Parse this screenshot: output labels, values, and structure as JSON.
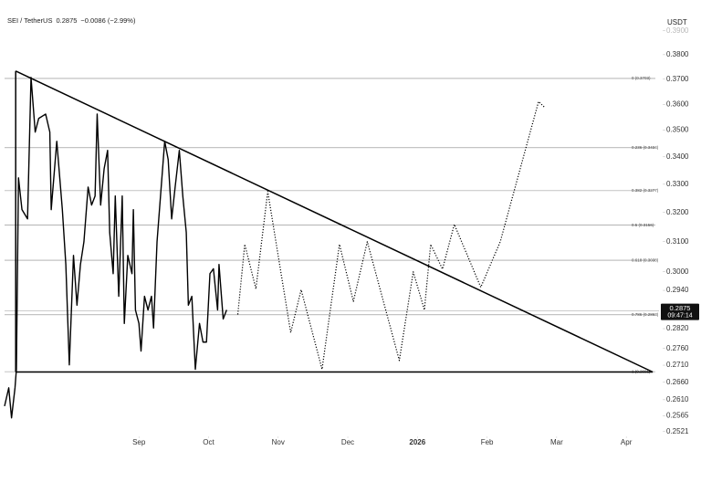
{
  "chart_data": {
    "type": "line",
    "title": "SEI / TetherUS",
    "last_price": 0.2875,
    "change": "−0.0086 (−2.99%)",
    "last_time": "09:47:14",
    "y_axis_label": "USDT",
    "log_scale": true,
    "grid": false,
    "xlim": [
      -1.93,
      7.47
    ],
    "xticks": [
      {
        "value": 0,
        "label": "Sep"
      },
      {
        "value": 1,
        "label": "Oct"
      },
      {
        "value": 2,
        "label": "Nov"
      },
      {
        "value": 3,
        "label": "Dec"
      },
      {
        "value": 4,
        "label": "2026"
      },
      {
        "value": 5,
        "label": "Feb"
      },
      {
        "value": 6,
        "label": "Mar"
      },
      {
        "value": 7,
        "label": "Apr"
      }
    ],
    "ylim": [
      0.2508,
      0.3934
    ],
    "yticks": [
      {
        "value": 0.39,
        "label": "0.3900"
      },
      {
        "value": 0.38,
        "label": "0.3800"
      },
      {
        "value": 0.37,
        "label": "0.3700"
      },
      {
        "value": 0.36,
        "label": "0.3600"
      },
      {
        "value": 0.35,
        "label": "0.3500"
      },
      {
        "value": 0.34,
        "label": "0.3400"
      },
      {
        "value": 0.33,
        "label": "0.3300"
      },
      {
        "value": 0.32,
        "label": "0.3200"
      },
      {
        "value": 0.31,
        "label": "0.3100"
      },
      {
        "value": 0.3,
        "label": "0.3000"
      },
      {
        "value": 0.294,
        "label": "0.2940"
      },
      {
        "value": 0.282,
        "label": "0.2820"
      },
      {
        "value": 0.276,
        "label": "0.2760"
      },
      {
        "value": 0.271,
        "label": "0.2710"
      },
      {
        "value": 0.266,
        "label": "0.2660"
      },
      {
        "value": 0.261,
        "label": "0.2610"
      },
      {
        "value": 0.2565,
        "label": "0.2565"
      },
      {
        "value": 0.2521,
        "label": "0.2521"
      }
    ],
    "series": [
      {
        "color": "#000000",
        "style": "solid",
        "x": [
          -1.93,
          -1.87,
          -1.83,
          -1.78,
          -1.76,
          -1.73,
          -1.68,
          -1.6,
          -1.55,
          -1.49,
          -1.44,
          -1.34,
          -1.28,
          -1.26,
          -1.18,
          -1.1,
          -1.05,
          -1.0,
          -0.94,
          -0.89,
          -0.84,
          -0.79,
          -0.73,
          -0.68,
          -0.63,
          -0.6,
          -0.55,
          -0.5,
          -0.45,
          -0.42,
          -0.37,
          -0.34,
          -0.29,
          -0.24,
          -0.21,
          -0.16,
          -0.1,
          -0.08,
          -0.05,
          0,
          0.03,
          0.08,
          0.13,
          0.18,
          0.21,
          0.26,
          0.31,
          0.37,
          0.42,
          0.47,
          0.52,
          0.58,
          0.63,
          0.68,
          0.71,
          0.76,
          0.81,
          0.87,
          0.92,
          0.97,
          1.02,
          1.07,
          1.13,
          1.15,
          1.21,
          1.26
        ],
        "values": [
          0.2592,
          0.2644,
          0.2559,
          0.2644,
          0.2698,
          0.3323,
          0.321,
          0.3178,
          0.3707,
          0.3493,
          0.3545,
          0.3562,
          0.3493,
          0.321,
          0.3458,
          0.321,
          0.3024,
          0.2711,
          0.3054,
          0.2893,
          0.3024,
          0.31,
          0.329,
          0.3226,
          0.3258,
          0.3562,
          0.3226,
          0.3356,
          0.3424,
          0.3131,
          0.2994,
          0.3258,
          0.2921,
          0.3258,
          0.2836,
          0.3054,
          0.2994,
          0.321,
          0.2878,
          0.2836,
          0.2752,
          0.2921,
          0.2878,
          0.2921,
          0.2822,
          0.31,
          0.3258,
          0.3458,
          0.339,
          0.3178,
          0.329,
          0.3424,
          0.3258,
          0.3131,
          0.2893,
          0.2921,
          0.2698,
          0.2836,
          0.2779,
          0.2779,
          0.2994,
          0.301,
          0.2878,
          0.3024,
          0.285,
          0.2878
        ]
      },
      {
        "color": "#000000",
        "style": "dotted",
        "x": [
          1.42,
          1.52,
          1.68,
          1.85,
          2.18,
          2.33,
          2.63,
          2.88,
          3.08,
          3.28,
          3.74,
          3.94,
          4.1,
          4.19,
          4.36,
          4.53,
          4.91,
          5.19,
          5.74,
          5.82
        ],
        "values": [
          0.2864,
          0.3091,
          0.2945,
          0.3274,
          0.2808,
          0.2942,
          0.2698,
          0.3091,
          0.2905,
          0.31,
          0.2724,
          0.3,
          0.2878,
          0.3091,
          0.3009,
          0.3159,
          0.295,
          0.31,
          0.3611,
          0.359
        ]
      }
    ],
    "levels": [
      {
        "value": 0.3703,
        "label": "0 (0.3703)"
      },
      {
        "value": 0.3434,
        "label": "0.236 (0.3434)"
      },
      {
        "value": 0.3277,
        "label": "0.382 (0.3277)"
      },
      {
        "value": 0.3156,
        "label": "0.5 (0.3156)"
      },
      {
        "value": 0.3038,
        "label": "0.618 (0.3038)"
      },
      {
        "value": 0.2863,
        "label": "0.786 (0.2863)"
      },
      {
        "value": 0.2691,
        "label": "1 (0.2691)"
      }
    ],
    "trendlines": [
      {
        "x": [
          -1.77,
          7.38
        ],
        "values": [
          0.3733,
          0.269
        ]
      },
      {
        "x": [
          -1.77,
          7.38
        ],
        "values": [
          0.269,
          0.269
        ]
      },
      {
        "x": [
          -1.77,
          -1.77
        ],
        "values": [
          0.269,
          0.3733
        ]
      }
    ]
  }
}
